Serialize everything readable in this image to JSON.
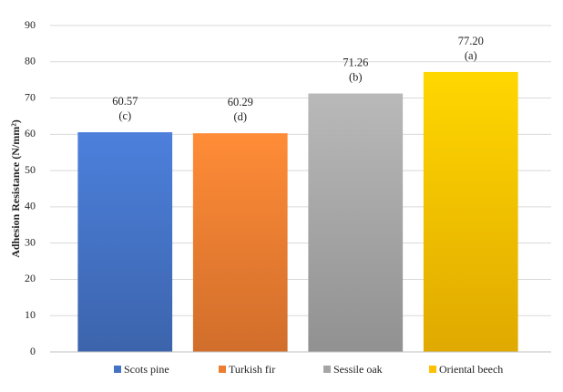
{
  "chart_data": {
    "type": "bar",
    "y_label": "Adhesion Resistance (N/mm²)",
    "categories": [
      "Scots pine",
      "Turkish fir",
      "Sessile oak",
      "Oriental beech"
    ],
    "values": [
      60.57,
      60.29,
      71.26,
      77.2
    ],
    "value_labels": [
      "60.57",
      "60.29",
      "71.26",
      "77.20"
    ],
    "annotations": [
      "(c)",
      "(d)",
      "(b)",
      "(a)"
    ],
    "colors": [
      "#4472c4",
      "#ed7d31",
      "#a5a5a5",
      "#ffc000"
    ],
    "ylim": [
      0,
      90
    ],
    "yticks": [
      0,
      10,
      20,
      30,
      40,
      50,
      60,
      70,
      80,
      90
    ],
    "grid": true,
    "legend": "bottom"
  }
}
